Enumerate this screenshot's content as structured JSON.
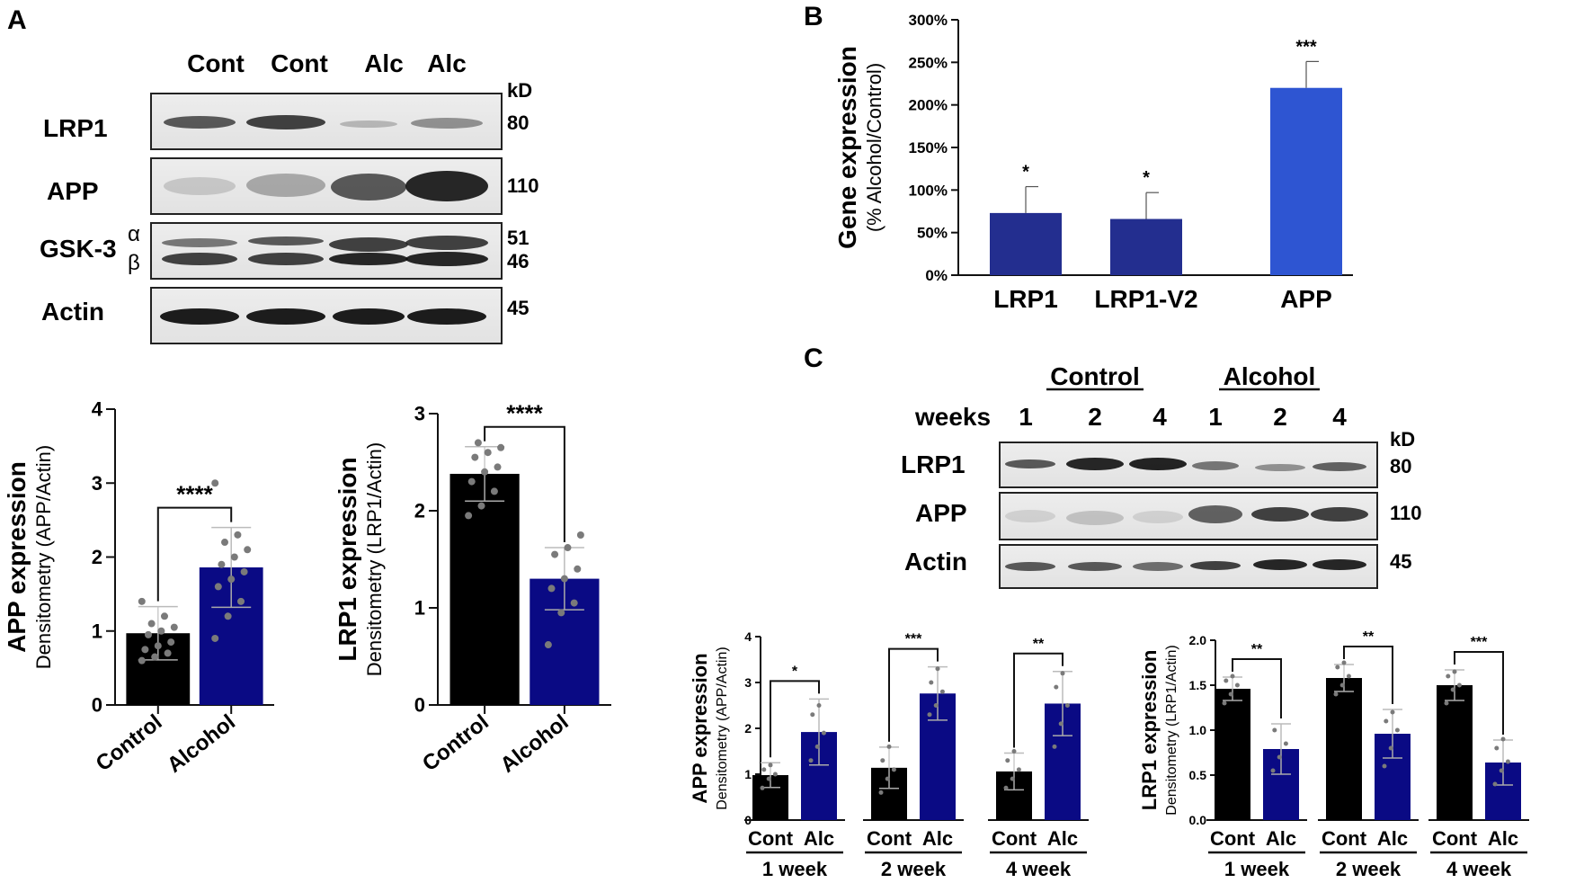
{
  "panel_labels": {
    "A": "A",
    "B": "B",
    "C": "C"
  },
  "colors": {
    "black": "#000000",
    "navy": "#0a0a84",
    "b_dark": "#232e8f",
    "b_light": "#2e55d2",
    "dot": "#7a7a7a"
  },
  "blot_A": {
    "lanes": [
      "Cont",
      "Cont",
      "Alc",
      "Alc"
    ],
    "kd_header": "kD",
    "rows": [
      {
        "label": "LRP1",
        "kd": "80"
      },
      {
        "label": "APP",
        "kd": "110"
      },
      {
        "label": "GSK-3",
        "kd_a": "51",
        "kd_b": "46",
        "alpha": "α",
        "beta": "β"
      },
      {
        "label": "Actin",
        "kd": "45"
      }
    ]
  },
  "blot_C": {
    "group_labels": [
      "Control",
      "Alcohol"
    ],
    "weeks_label": "weeks",
    "lanes": [
      "1",
      "2",
      "4",
      "1",
      "2",
      "4"
    ],
    "kd_header": "kD",
    "rows": [
      {
        "label": "LRP1",
        "kd": "80"
      },
      {
        "label": "APP",
        "kd": "110"
      },
      {
        "label": "Actin",
        "kd": "45"
      }
    ]
  },
  "chart_data": [
    {
      "id": "A-APP",
      "type": "bar",
      "categories": [
        "Control",
        "Alcohol"
      ],
      "values": [
        0.97,
        1.86
      ],
      "errors": [
        0.36,
        0.54
      ],
      "ylabel_bold": "APP expression",
      "ylabel": "Densitometry (APP/Actin)",
      "ylim": [
        0,
        4
      ],
      "yticks": [
        "0",
        "1",
        "2",
        "3",
        "4"
      ],
      "significance": "****",
      "points": [
        [
          0.6,
          0.65,
          0.7,
          0.75,
          0.8,
          0.85,
          0.95,
          1.0,
          1.05,
          1.1,
          1.2,
          1.4
        ],
        [
          0.9,
          1.2,
          1.4,
          1.6,
          1.7,
          1.8,
          1.9,
          2.0,
          2.1,
          2.2,
          2.3,
          3.0
        ]
      ]
    },
    {
      "id": "A-LRP1",
      "type": "bar",
      "categories": [
        "Control",
        "Alcohol"
      ],
      "values": [
        2.38,
        1.3
      ],
      "errors": [
        0.28,
        0.32
      ],
      "ylabel_bold": "LRP1 expression",
      "ylabel": "Densitometry (LRP1/Actin)",
      "ylim": [
        0,
        3
      ],
      "yticks": [
        "0",
        "1",
        "2",
        "3"
      ],
      "significance": "****",
      "points": [
        [
          1.95,
          2.05,
          2.2,
          2.3,
          2.4,
          2.45,
          2.55,
          2.6,
          2.65,
          2.7
        ],
        [
          0.62,
          0.95,
          1.05,
          1.2,
          1.3,
          1.4,
          1.55,
          1.62,
          1.75
        ]
      ]
    },
    {
      "id": "B",
      "type": "bar",
      "categories": [
        "LRP1",
        "LRP1-V2",
        "APP"
      ],
      "values": [
        73,
        66,
        220
      ],
      "errors": [
        31,
        31,
        31
      ],
      "ylabel_bold": "Gene expression",
      "ylabel": "(% Alcohol/Control)",
      "ylim": [
        0,
        300
      ],
      "yticks": [
        "0%",
        "50%",
        "100%",
        "150%",
        "200%",
        "250%",
        "300%"
      ],
      "significance": [
        "*",
        "*",
        "***"
      ]
    },
    {
      "id": "C-APP",
      "type": "bar",
      "ylabel_bold": "APP expression",
      "ylabel": "Densitometry (APP/Actin)",
      "ylim": [
        0,
        4
      ],
      "yticks": [
        "0",
        "1",
        "2",
        "3",
        "4"
      ],
      "groups": [
        {
          "label": "1 week",
          "categories": [
            "Cont",
            "Alc"
          ],
          "values": [
            0.98,
            1.92
          ],
          "errors": [
            0.27,
            0.72
          ],
          "significance": "*",
          "points": [
            [
              0.7,
              0.9,
              1.0,
              1.1,
              1.2
            ],
            [
              1.3,
              1.6,
              1.9,
              2.3,
              2.5
            ]
          ]
        },
        {
          "label": "2 week",
          "categories": [
            "Cont",
            "Alc"
          ],
          "values": [
            1.14,
            2.76
          ],
          "errors": [
            0.45,
            0.58
          ],
          "significance": "***",
          "points": [
            [
              0.6,
              0.9,
              1.1,
              1.3,
              1.6
            ],
            [
              2.3,
              2.5,
              2.8,
              3.0,
              3.3
            ]
          ]
        },
        {
          "label": "4 week",
          "categories": [
            "Cont",
            "Alc"
          ],
          "values": [
            1.06,
            2.54
          ],
          "errors": [
            0.4,
            0.7
          ],
          "significance": "**",
          "points": [
            [
              0.7,
              0.9,
              1.1,
              1.3,
              1.5
            ],
            [
              1.6,
              2.1,
              2.5,
              2.9,
              3.2
            ]
          ]
        }
      ]
    },
    {
      "id": "C-LRP1",
      "type": "bar",
      "ylabel_bold": "LRP1 expression",
      "ylabel": "Densitometry (LRP1/Actin)",
      "ylim": [
        0,
        2.0
      ],
      "yticks": [
        "0.0",
        "0.5",
        "1.0",
        "1.5",
        "2.0"
      ],
      "groups": [
        {
          "label": "1 week",
          "categories": [
            "Cont",
            "Alc"
          ],
          "values": [
            1.46,
            0.79
          ],
          "errors": [
            0.13,
            0.28
          ],
          "significance": "**",
          "points": [
            [
              1.3,
              1.4,
              1.5,
              1.55,
              1.6
            ],
            [
              0.55,
              0.7,
              0.85,
              1.0
            ]
          ]
        },
        {
          "label": "2 week",
          "categories": [
            "Cont",
            "Alc"
          ],
          "values": [
            1.58,
            0.96
          ],
          "errors": [
            0.15,
            0.27
          ],
          "significance": "**",
          "points": [
            [
              1.4,
              1.5,
              1.6,
              1.7,
              1.75
            ],
            [
              0.6,
              0.8,
              1.0,
              1.1,
              1.2
            ]
          ]
        },
        {
          "label": "4 week",
          "categories": [
            "Cont",
            "Alc"
          ],
          "values": [
            1.5,
            0.64
          ],
          "errors": [
            0.17,
            0.25
          ],
          "significance": "***",
          "points": [
            [
              1.3,
              1.45,
              1.5,
              1.6,
              1.65
            ],
            [
              0.4,
              0.55,
              0.65,
              0.8,
              0.9
            ]
          ]
        }
      ]
    }
  ]
}
